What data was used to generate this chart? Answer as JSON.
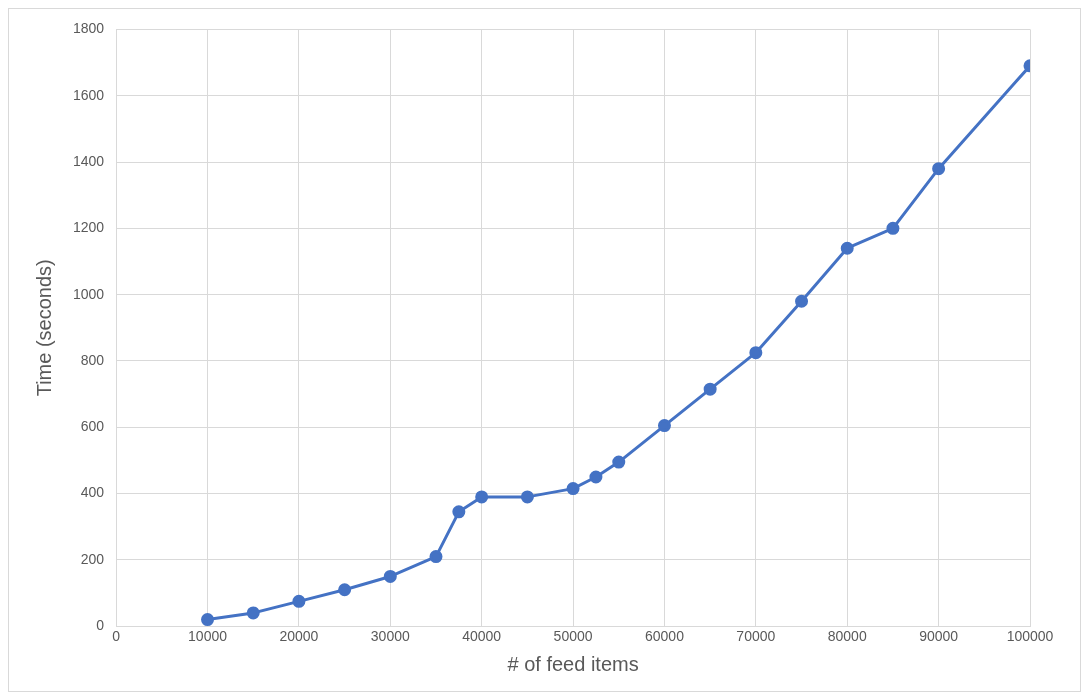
{
  "chart_data": {
    "type": "line",
    "xlabel": "# of feed items",
    "ylabel": "Time (seconds)",
    "x": [
      10000,
      15000,
      20000,
      25000,
      30000,
      35000,
      37500,
      40000,
      45000,
      50000,
      52500,
      55000,
      60000,
      65000,
      70000,
      75000,
      80000,
      85000,
      90000,
      100000
    ],
    "series": [
      {
        "color": "#4472c4",
        "values": [
          20,
          40,
          75,
          110,
          150,
          210,
          345,
          390,
          390,
          415,
          450,
          495,
          605,
          715,
          825,
          980,
          1140,
          1200,
          1380,
          1690
        ]
      }
    ],
    "xlim": [
      0,
      100000
    ],
    "xticks": [
      0,
      10000,
      20000,
      30000,
      40000,
      50000,
      60000,
      70000,
      80000,
      90000,
      100000
    ],
    "ylim": [
      0,
      1800
    ],
    "yticks": [
      0,
      200,
      400,
      600,
      800,
      1000,
      1200,
      1400,
      1600,
      1800
    ],
    "grid": true,
    "marker": "circle",
    "line_style": "solid",
    "legend": false
  }
}
